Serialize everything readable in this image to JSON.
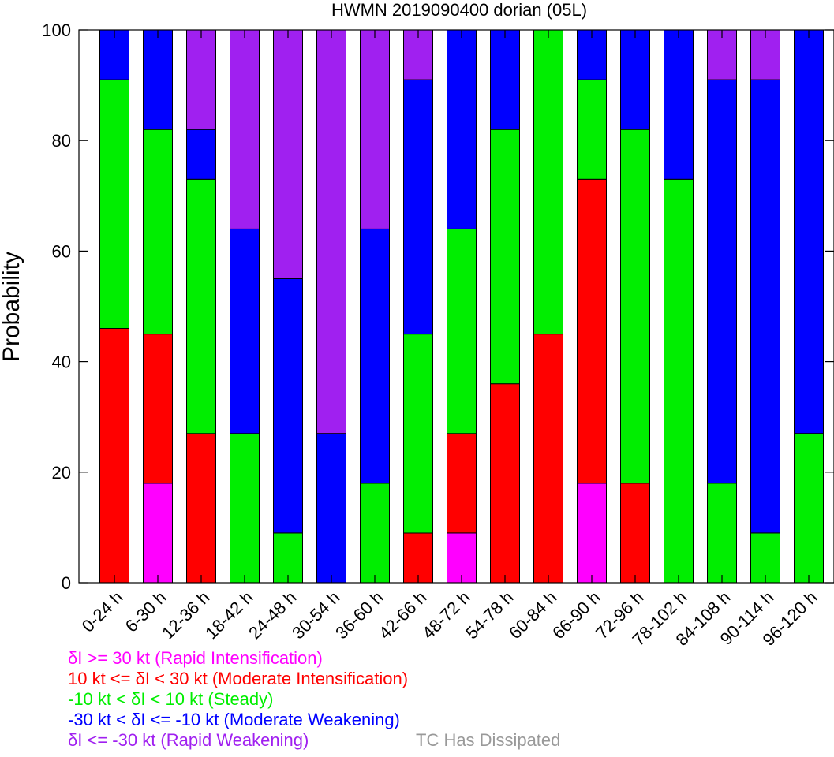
{
  "chart_data": {
    "type": "bar",
    "stacked": true,
    "title": "HWMN 2019090400 dorian (05L)",
    "xlabel": "",
    "ylabel": "Probability",
    "ylim": [
      0,
      100
    ],
    "yticks": [
      0,
      20,
      40,
      60,
      80,
      100
    ],
    "grid": false,
    "categories": [
      "0-24 h",
      "6-30 h",
      "12-36 h",
      "18-42 h",
      "24-48 h",
      "30-54 h",
      "36-60 h",
      "42-66 h",
      "48-72 h",
      "54-78 h",
      "60-84 h",
      "66-90 h",
      "72-96 h",
      "78-102 h",
      "84-108 h",
      "90-114 h",
      "96-120 h"
    ],
    "series": [
      {
        "name": "δI >= 30 kt (Rapid Intensification)",
        "color": "#ff00ff",
        "values": [
          0,
          18,
          0,
          0,
          0,
          0,
          0,
          0,
          9,
          0,
          0,
          18,
          0,
          0,
          0,
          0,
          0
        ]
      },
      {
        "name": "10 kt <= δI < 30 kt (Moderate Intensification)",
        "color": "#ff0000",
        "values": [
          46,
          27,
          27,
          0,
          0,
          0,
          0,
          9,
          18,
          36,
          45,
          55,
          18,
          0,
          0,
          0,
          0
        ]
      },
      {
        "name": "-10 kt < δI < 10 kt (Steady)",
        "color": "#00ee00",
        "values": [
          45,
          37,
          46,
          27,
          9,
          0,
          18,
          36,
          37,
          46,
          55,
          18,
          64,
          73,
          18,
          9,
          27
        ]
      },
      {
        "name": "-30 kt < δI <= -10 kt (Moderate Weakening)",
        "color": "#0000ff",
        "values": [
          9,
          18,
          9,
          37,
          46,
          27,
          46,
          46,
          36,
          18,
          0,
          9,
          18,
          27,
          73,
          82,
          73
        ]
      },
      {
        "name": "δI <= -30 kt (Rapid Weakening)",
        "color": "#a020f0",
        "values": [
          0,
          0,
          18,
          36,
          45,
          73,
          36,
          9,
          0,
          0,
          0,
          0,
          0,
          0,
          9,
          9,
          0
        ]
      }
    ],
    "legend_position": "bottom-left",
    "legend_extra": {
      "label": "TC Has Dissipated",
      "color": "#999999"
    }
  }
}
